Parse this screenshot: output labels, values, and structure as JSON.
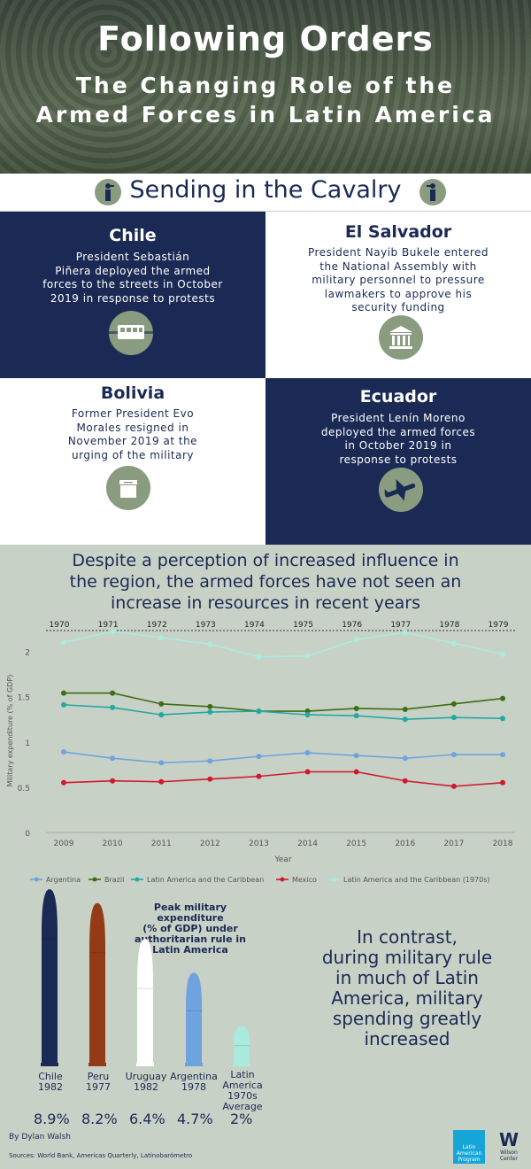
{
  "header": {
    "title": "Following Orders",
    "subtitle_line1": "The Changing Role of the",
    "subtitle_line2": "Armed Forces in Latin America"
  },
  "section_title": "Sending in the Cavalry",
  "cards": [
    {
      "title": "Chile",
      "body": [
        "President Sebastián",
        "Piñera deployed the armed",
        "forces to the streets in October",
        "2019 in response to protests"
      ],
      "icon": "train-icon"
    },
    {
      "title": "El Salvador",
      "body": [
        "President Nayib Bukele entered",
        "the National Assembly with",
        "military personnel to pressure",
        "lawmakers to approve his",
        "security funding"
      ],
      "icon": "government-building-icon"
    },
    {
      "title": "Bolivia",
      "body": [
        "Former President Evo",
        "Morales resigned in",
        "November 2019 at the",
        "urging of the military"
      ],
      "icon": "ballot-box-icon"
    },
    {
      "title": "Ecuador",
      "body": [
        "President Lenín Moreno",
        "deployed the armed forces",
        "in October 2019 in",
        "response to protests"
      ],
      "icon": "airplane-icon"
    }
  ],
  "chart_heading": [
    "Despite a perception of increased influence in",
    "the region, the armed forces have not seen an",
    "increase in resources in recent years"
  ],
  "chart_data": {
    "type": "line",
    "x": [
      2009,
      2010,
      2011,
      2012,
      2013,
      2014,
      2015,
      2016,
      2017,
      2018
    ],
    "x_top": [
      1970,
      1971,
      1972,
      1973,
      1974,
      1975,
      1976,
      1977,
      1978,
      1979
    ],
    "xlabel": "Year",
    "ylabel": "Military expenditure (% of GDP)",
    "ylim": [
      0,
      2.25
    ],
    "yticks": [
      0,
      0.5,
      1,
      1.5,
      2
    ],
    "ytick_labels": [
      "0",
      "0.5",
      "1",
      "1.5",
      "2"
    ],
    "series": [
      {
        "name": "Argentina",
        "color": "#6fa3df",
        "values": [
          0.89,
          0.82,
          0.77,
          0.79,
          0.84,
          0.88,
          0.85,
          0.82,
          0.86,
          0.86
        ]
      },
      {
        "name": "Brazil",
        "color": "#3d6e13",
        "values": [
          1.54,
          1.54,
          1.42,
          1.39,
          1.34,
          1.34,
          1.37,
          1.36,
          1.42,
          1.48
        ]
      },
      {
        "name": "Latin America and the Caribbean",
        "color": "#21a9a4",
        "values": [
          1.41,
          1.38,
          1.3,
          1.33,
          1.34,
          1.3,
          1.29,
          1.25,
          1.27,
          1.26
        ]
      },
      {
        "name": "Mexico",
        "color": "#d0192c",
        "values": [
          0.55,
          0.57,
          0.56,
          0.59,
          0.62,
          0.67,
          0.67,
          0.57,
          0.51,
          0.55
        ]
      },
      {
        "name": "Latin America and the Caribbean (1970s)",
        "color": "#a9ecdf",
        "values": [
          2.1,
          2.22,
          2.15,
          2.08,
          1.94,
          1.95,
          2.13,
          2.21,
          2.09,
          1.97
        ]
      }
    ],
    "legend_position": "bottom",
    "grid": false
  },
  "peak_chart": {
    "title": [
      "Peak military expenditure",
      "(% of GDP) under",
      "authoritarian rule in",
      "Latin America"
    ],
    "bars": [
      {
        "label": [
          "Chile",
          "1982"
        ],
        "value": 8.9,
        "value_label": "8.9%",
        "color": "#1b2a55"
      },
      {
        "label": [
          "Peru",
          "1977"
        ],
        "value": 8.2,
        "value_label": "8.2%",
        "color": "#933b17"
      },
      {
        "label": [
          "Uruguay",
          "1982"
        ],
        "value": 6.4,
        "value_label": "6.4%",
        "color": "#ffffff"
      },
      {
        "label": [
          "Argentina",
          "1978"
        ],
        "value": 4.7,
        "value_label": "4.7%",
        "color": "#6fa3df"
      },
      {
        "label": [
          "Latin",
          "America",
          "1970s",
          "Average"
        ],
        "value": 2,
        "value_label": "2%",
        "color": "#a9ecdf"
      }
    ]
  },
  "contrast_text": [
    "In contrast,",
    "during military rule",
    "in much of Latin",
    "America, military",
    "spending greatly",
    "increased"
  ],
  "footer": {
    "byline": "By Dylan Walsh",
    "sources": "Sources: World Bank, Americas Quarterly, Latinobarómetro",
    "logo1": [
      "Latin",
      "American",
      "Program"
    ],
    "logo2_mark": "W",
    "logo2": [
      "Wilson",
      "Center"
    ]
  }
}
